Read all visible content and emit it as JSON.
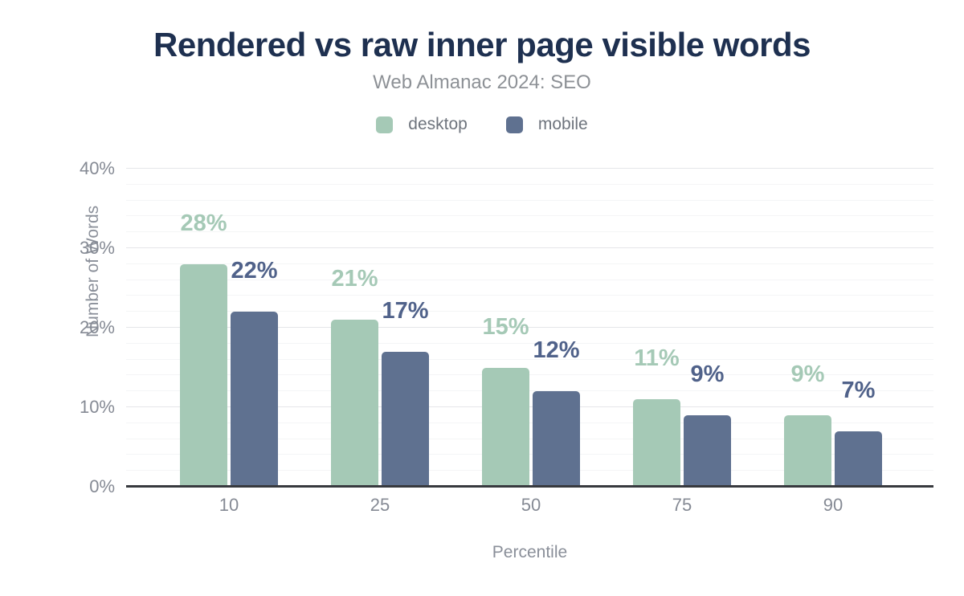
{
  "title": "Rendered vs raw inner page visible words",
  "subtitle": "Web Almanac 2024: SEO",
  "legend": [
    {
      "label": "desktop",
      "color": "#a5c9b6"
    },
    {
      "label": "mobile",
      "color": "#5f7190"
    }
  ],
  "chart_data": {
    "type": "bar",
    "title": "Rendered vs raw inner page visible words",
    "subtitle": "Web Almanac 2024: SEO",
    "categories": [
      "10",
      "25",
      "50",
      "75",
      "90"
    ],
    "series": [
      {
        "name": "desktop",
        "color": "#a5c9b6",
        "label_color": "#a5c9b6",
        "values": [
          28,
          21,
          15,
          11,
          9
        ],
        "labels": [
          "28%",
          "21%",
          "15%",
          "11%",
          "9%"
        ]
      },
      {
        "name": "mobile",
        "color": "#5f7190",
        "label_color": "#50628a",
        "values": [
          22,
          17,
          12,
          9,
          7
        ],
        "labels": [
          "22%",
          "17%",
          "12%",
          "9%",
          "7%"
        ]
      }
    ],
    "xlabel": "Percentile",
    "ylabel": "Number of Words",
    "ylim": [
      0,
      40
    ],
    "yticks": [
      "0%",
      "10%",
      "20%",
      "30%",
      "40%"
    ],
    "ytick_values": [
      0,
      10,
      20,
      30,
      40
    ],
    "grid": {
      "major_step": 10,
      "minor_step": 2,
      "vertical": false
    },
    "legend_position": "top",
    "axis_line_color": "#37393e",
    "title_color": "#1e3050",
    "tick_color": "#858a94"
  }
}
